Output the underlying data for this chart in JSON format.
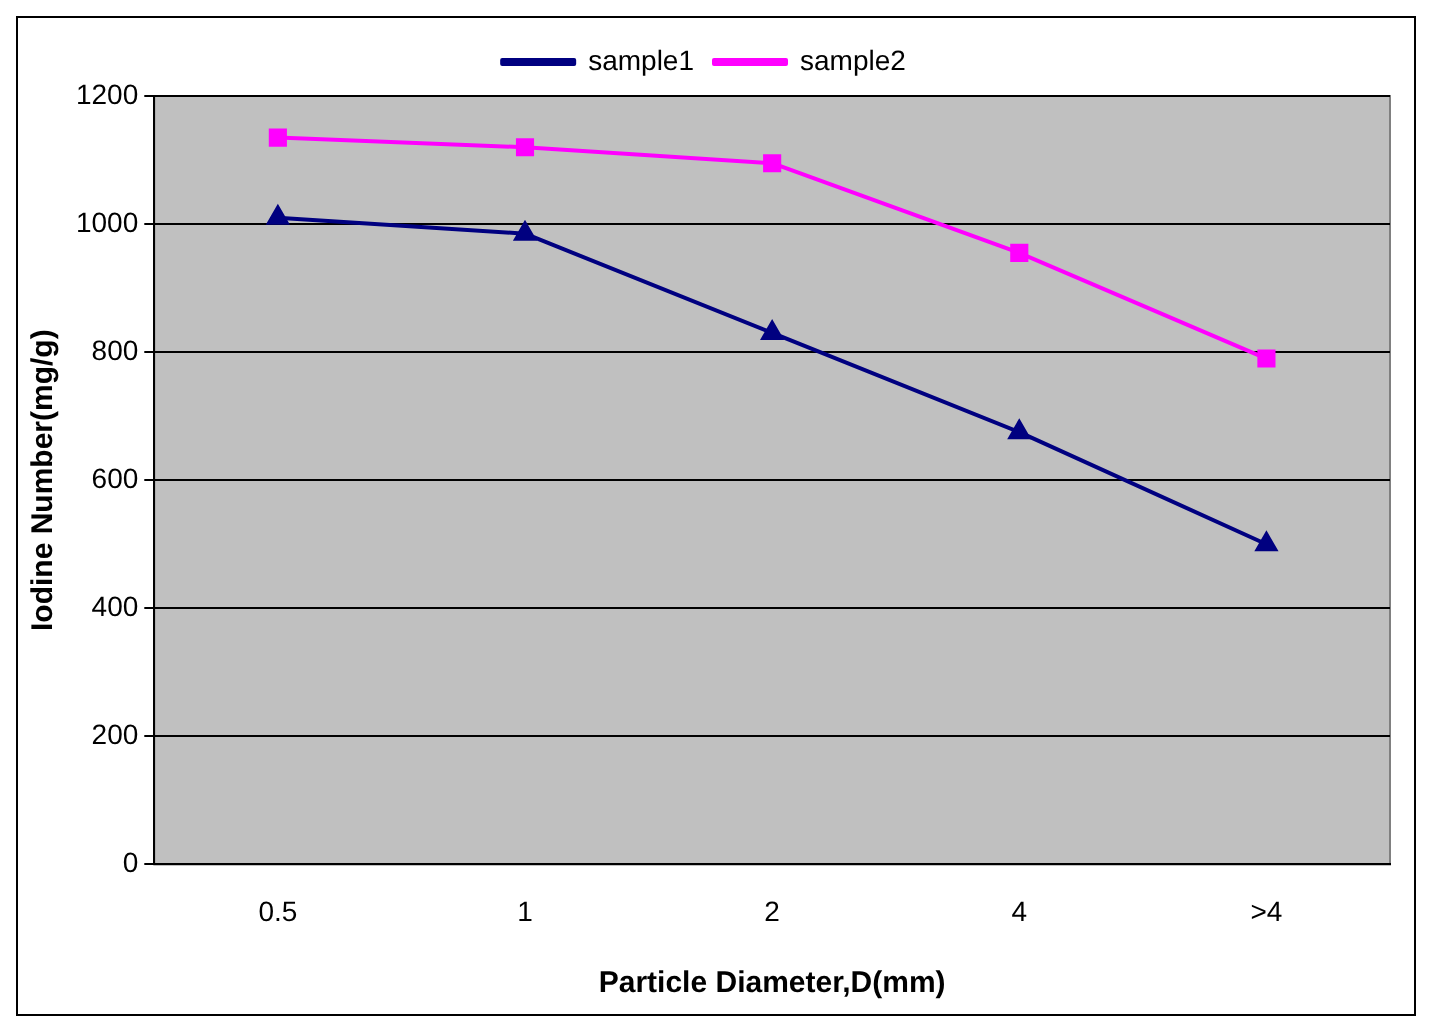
{
  "chart_data": {
    "type": "line",
    "xlabel": "Particle Diameter,D(mm)",
    "ylabel": "Iodine Number(mg/g)",
    "categories": [
      "0.5",
      "1",
      "2",
      "4",
      ">4"
    ],
    "series": [
      {
        "name": "sample1",
        "color": "#000080",
        "marker": "triangle",
        "values": [
          1010,
          985,
          830,
          675,
          500
        ]
      },
      {
        "name": "sample2",
        "color": "#ff00ff",
        "marker": "square",
        "values": [
          1135,
          1120,
          1095,
          955,
          790
        ]
      }
    ],
    "ylim": [
      0,
      1200
    ],
    "yticks": [
      0,
      200,
      400,
      600,
      800,
      1000,
      1200
    ],
    "grid": "y",
    "legend": "top"
  }
}
